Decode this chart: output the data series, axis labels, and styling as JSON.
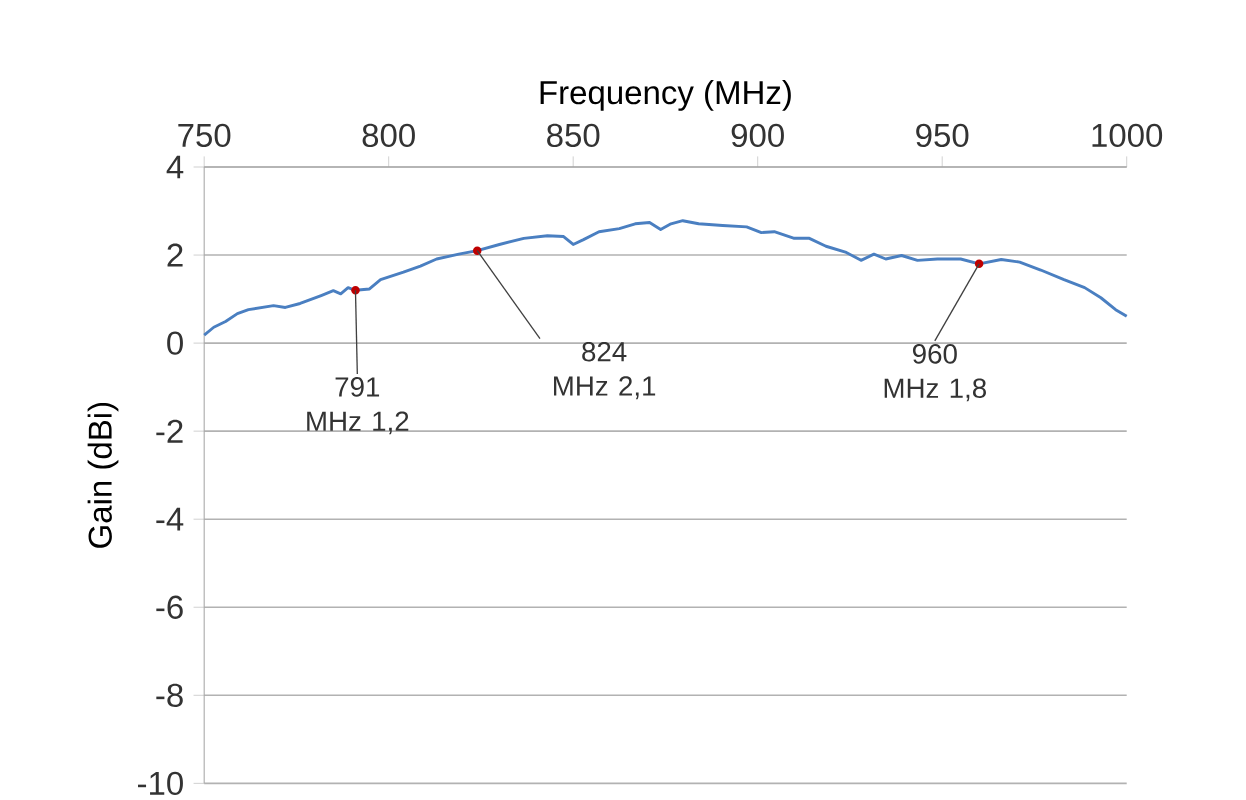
{
  "chart_data": {
    "type": "line",
    "xlabel": "Frequency (MHz)",
    "ylabel": "Gain (dBi)",
    "xlim": [
      750,
      1000
    ],
    "xticks": [
      750,
      800,
      850,
      900,
      950,
      1000
    ],
    "ylim": [
      -10,
      4
    ],
    "yticks": [
      -10,
      -8,
      -6,
      -4,
      -2,
      0,
      2,
      4
    ],
    "grid": "y",
    "marker": "none",
    "line_style": "solid",
    "series": [
      {
        "color": "#4a7fc1",
        "x": [
          750,
          752.6,
          755.8,
          759,
          762,
          768.8,
          772,
          776,
          781.7,
          785,
          787,
          789,
          791,
          794.8,
          797.8,
          804,
          808.6,
          813,
          819,
          824,
          830,
          836.6,
          843,
          847.4,
          850,
          852.8,
          857,
          862.5,
          866.8,
          870.7,
          873.7,
          876.5,
          879.7,
          884,
          890.5,
          897,
          901,
          904.5,
          909.9,
          914,
          918.5,
          924,
          928,
          931.5,
          934.7,
          939,
          943.3,
          948.7,
          955,
          960,
          966,
          971,
          976.7,
          983,
          988.6,
          993,
          997,
          1000
        ],
        "values": [
          0.18,
          0.36,
          0.49,
          0.67,
          0.76,
          0.85,
          0.81,
          0.9,
          1.08,
          1.19,
          1.12,
          1.26,
          1.2,
          1.23,
          1.44,
          1.61,
          1.75,
          1.91,
          2.02,
          2.1,
          2.24,
          2.38,
          2.44,
          2.42,
          2.24,
          2.35,
          2.53,
          2.6,
          2.71,
          2.74,
          2.58,
          2.71,
          2.78,
          2.71,
          2.67,
          2.64,
          2.51,
          2.53,
          2.38,
          2.38,
          2.2,
          2.06,
          1.88,
          2.02,
          1.91,
          1.99,
          1.88,
          1.91,
          1.91,
          1.8,
          1.9,
          1.84,
          1.66,
          1.44,
          1.26,
          1.03,
          0.76,
          0.61
        ]
      }
    ],
    "annotations": [
      {
        "text": "791 MHz 1,2",
        "x": 791,
        "y": 1.2
      },
      {
        "text": "824 MHz 2,1",
        "x": 824,
        "y": 2.1
      },
      {
        "text": "960 MHz 1,8",
        "x": 960,
        "y": 1.8
      }
    ]
  }
}
